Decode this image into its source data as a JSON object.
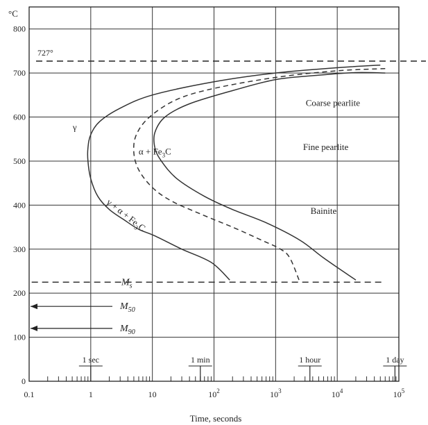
{
  "chart_data": {
    "type": "line",
    "title": "",
    "xlabel": "Time, seconds",
    "ylabel": "°C",
    "x_scale": "log",
    "xlim": [
      0.1,
      100000
    ],
    "ylim": [
      0,
      850
    ],
    "yticks": [
      0,
      100,
      200,
      300,
      400,
      500,
      600,
      700,
      800
    ],
    "xticks": [
      {
        "value": 0.1,
        "label": "0.1"
      },
      {
        "value": 1,
        "label": "1"
      },
      {
        "value": 10,
        "label": "10"
      },
      {
        "value": 100,
        "label": "10",
        "exp": "2"
      },
      {
        "value": 1000,
        "label": "10",
        "exp": "3"
      },
      {
        "value": 10000,
        "label": "10",
        "exp": "4"
      },
      {
        "value": 100000,
        "label": "10",
        "exp": "5"
      }
    ],
    "grid": true,
    "eutectoid": {
      "label": "727°",
      "y": 727
    },
    "ms_line": {
      "label": "M",
      "sub": "s",
      "y": 225,
      "x_start": 0.11,
      "x_end": 60000
    },
    "m50": {
      "label": "M",
      "sub": "50",
      "y": 170
    },
    "m90": {
      "label": "M",
      "sub": "90",
      "y": 120
    },
    "time_markers": [
      {
        "label": "1 sec",
        "x": 1
      },
      {
        "label": "1 min",
        "x": 60
      },
      {
        "label": "1 hour",
        "x": 3600
      },
      {
        "label": "1 day",
        "x": 86400
      }
    ],
    "series": [
      {
        "style": "solid",
        "points": [
          [
            50000,
            718
          ],
          [
            10000,
            712
          ],
          [
            1000,
            700
          ],
          [
            100,
            680
          ],
          [
            10,
            650
          ],
          [
            3,
            620
          ],
          [
            1.4,
            590
          ],
          [
            1.0,
            560
          ],
          [
            0.9,
            530
          ],
          [
            0.9,
            500
          ],
          [
            1.0,
            460
          ],
          [
            1.3,
            420
          ],
          [
            2,
            390
          ],
          [
            3.6,
            365
          ],
          [
            6,
            345
          ],
          [
            11,
            330
          ],
          [
            30,
            300
          ],
          [
            90,
            270
          ],
          [
            180,
            230
          ]
        ]
      },
      {
        "style": "dashed",
        "points": [
          [
            60000,
            710
          ],
          [
            10000,
            705
          ],
          [
            1000,
            690
          ],
          [
            100,
            665
          ],
          [
            25,
            640
          ],
          [
            9,
            600
          ],
          [
            5.5,
            560
          ],
          [
            5,
            520
          ],
          [
            6,
            480
          ],
          [
            10,
            440
          ],
          [
            20,
            410
          ],
          [
            60,
            380
          ],
          [
            200,
            350
          ],
          [
            600,
            320
          ],
          [
            1200,
            300
          ],
          [
            1700,
            280
          ],
          [
            2400,
            230
          ]
        ]
      },
      {
        "style": "solid",
        "points": [
          [
            60000,
            700
          ],
          [
            20000,
            701
          ],
          [
            5000,
            695
          ],
          [
            1000,
            685
          ],
          [
            200,
            660
          ],
          [
            40,
            630
          ],
          [
            16,
            600
          ],
          [
            11,
            565
          ],
          [
            11,
            530
          ],
          [
            14,
            500
          ],
          [
            25,
            460
          ],
          [
            70,
            420
          ],
          [
            200,
            390
          ],
          [
            700,
            360
          ],
          [
            2500,
            320
          ],
          [
            6000,
            280
          ],
          [
            20000,
            230
          ]
        ]
      }
    ],
    "annotations": [
      {
        "text": "γ",
        "x": 0.55,
        "y": 570
      },
      {
        "text": "α + Fe",
        "sub": "3",
        "tail": "C",
        "x": 11,
        "y": 515
      },
      {
        "text": "Coarse pearlite",
        "x": 8500,
        "y": 625
      },
      {
        "text": "Fine pearlite",
        "x": 6500,
        "y": 525
      },
      {
        "text": "Bainite",
        "x": 6000,
        "y": 380
      },
      {
        "text": "γ + α + Fe",
        "sub": "3",
        "tail": "C",
        "x": 3.5,
        "y": 372,
        "rotate": 38
      }
    ]
  }
}
